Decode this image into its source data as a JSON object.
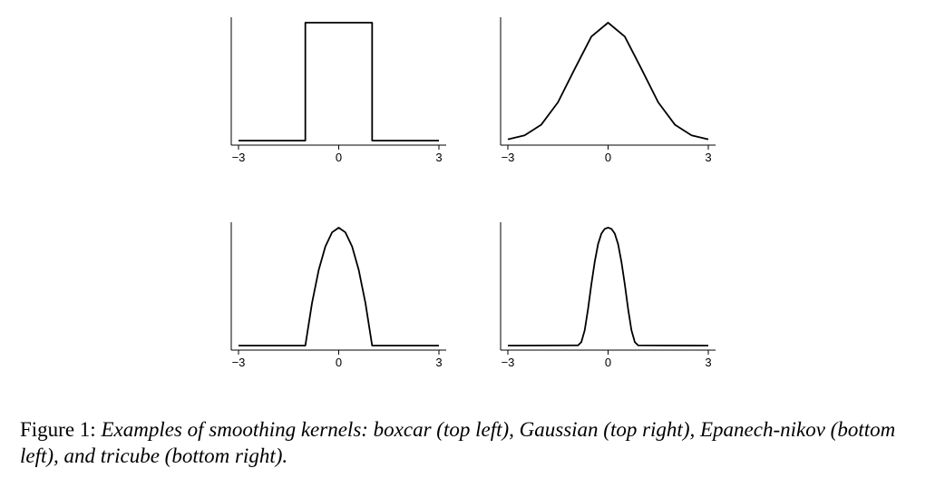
{
  "chart_data": [
    {
      "type": "line",
      "kernel": "boxcar",
      "title": "",
      "xlabel": "",
      "ylabel": "",
      "x_ticks": [
        "−3",
        "0",
        "3"
      ],
      "xlim": [
        -3,
        3
      ],
      "ylim": [
        0,
        1
      ],
      "series": [
        {
          "x": [
            -3,
            -1,
            -1,
            1,
            1,
            3
          ],
          "y": [
            0,
            0,
            1,
            1,
            0,
            0
          ]
        }
      ]
    },
    {
      "type": "line",
      "kernel": "gaussian",
      "title": "",
      "xlabel": "",
      "ylabel": "",
      "x_ticks": [
        "−3",
        "0",
        "3"
      ],
      "xlim": [
        -3,
        3
      ],
      "ylim": [
        0,
        1
      ],
      "series": [
        {
          "x": [
            -3,
            -2.5,
            -2,
            -1.5,
            -1,
            -0.5,
            0,
            0.5,
            1,
            1.5,
            2,
            2.5,
            3
          ],
          "y": [
            0.011,
            0.044,
            0.135,
            0.325,
            0.607,
            0.882,
            1,
            0.882,
            0.607,
            0.325,
            0.135,
            0.044,
            0.011
          ]
        }
      ]
    },
    {
      "type": "line",
      "kernel": "epanechnikov",
      "title": "",
      "xlabel": "",
      "ylabel": "",
      "x_ticks": [
        "−3",
        "0",
        "3"
      ],
      "xlim": [
        -3,
        3
      ],
      "ylim": [
        0,
        1
      ],
      "series": [
        {
          "x": [
            -3,
            -1,
            -0.8,
            -0.6,
            -0.4,
            -0.2,
            0,
            0.2,
            0.4,
            0.6,
            0.8,
            1,
            3
          ],
          "y": [
            0,
            0,
            0.36,
            0.64,
            0.84,
            0.96,
            1,
            0.96,
            0.84,
            0.64,
            0.36,
            0,
            0
          ]
        }
      ]
    },
    {
      "type": "line",
      "kernel": "tricube",
      "title": "",
      "xlabel": "",
      "ylabel": "",
      "x_ticks": [
        "−3",
        "0",
        "3"
      ],
      "xlim": [
        -3,
        3
      ],
      "ylim": [
        0,
        1
      ],
      "series": [
        {
          "x": [
            -3,
            -0.9,
            -0.8,
            -0.7,
            -0.6,
            -0.5,
            -0.4,
            -0.3,
            -0.2,
            -0.1,
            0,
            0.1,
            0.2,
            0.3,
            0.4,
            0.5,
            0.6,
            0.7,
            0.8,
            0.9,
            3
          ],
          "y": [
            0,
            0.002,
            0.03,
            0.13,
            0.31,
            0.52,
            0.71,
            0.86,
            0.95,
            0.99,
            1,
            0.99,
            0.95,
            0.86,
            0.71,
            0.52,
            0.31,
            0.13,
            0.03,
            0.002,
            0
          ]
        }
      ]
    }
  ],
  "caption": {
    "lead": "Figure 1: ",
    "text": "Examples of smoothing kernels: boxcar (top left), Gaussian (top right), Epanech-nikov (bottom left), and tricube (bottom right)."
  },
  "colors": {
    "line": "#000000",
    "axis": "#000000"
  }
}
